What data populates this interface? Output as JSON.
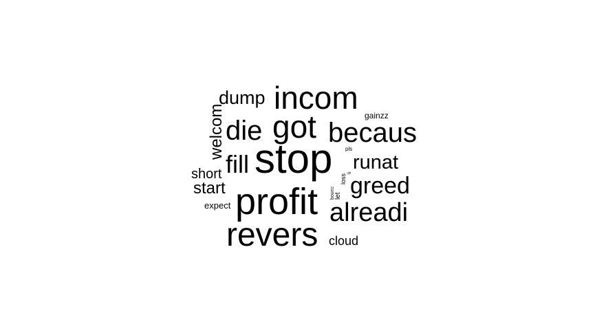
{
  "word_cloud": {
    "text_color": "#000000",
    "background_color": "#ffffff",
    "words": [
      {
        "text": "stop",
        "weight": 1.0
      },
      {
        "text": "profit",
        "weight": 0.95
      },
      {
        "text": "revers",
        "weight": 0.85
      },
      {
        "text": "incom",
        "weight": 0.82
      },
      {
        "text": "got",
        "weight": 0.82
      },
      {
        "text": "becaus",
        "weight": 0.7
      },
      {
        "text": "die",
        "weight": 0.7
      },
      {
        "text": "alreadi",
        "weight": 0.68
      },
      {
        "text": "fill",
        "weight": 0.6
      },
      {
        "text": "greed",
        "weight": 0.58
      },
      {
        "text": "runat",
        "weight": 0.5
      },
      {
        "text": "dump",
        "weight": 0.45
      },
      {
        "text": "welcom",
        "weight": 0.4
      },
      {
        "text": "start",
        "weight": 0.42
      },
      {
        "text": "short",
        "weight": 0.35
      },
      {
        "text": "cloud",
        "weight": 0.3
      },
      {
        "text": "expect",
        "weight": 0.22
      },
      {
        "text": "gainzz",
        "weight": 0.22
      },
      {
        "text": "pls",
        "weight": 0.12
      },
      {
        "text": "loss",
        "weight": 0.12
      },
      {
        "text": "let",
        "weight": 0.12
      },
      {
        "text": "bounc",
        "weight": 0.08
      },
      {
        "text": "li",
        "weight": 0.08
      }
    ]
  }
}
